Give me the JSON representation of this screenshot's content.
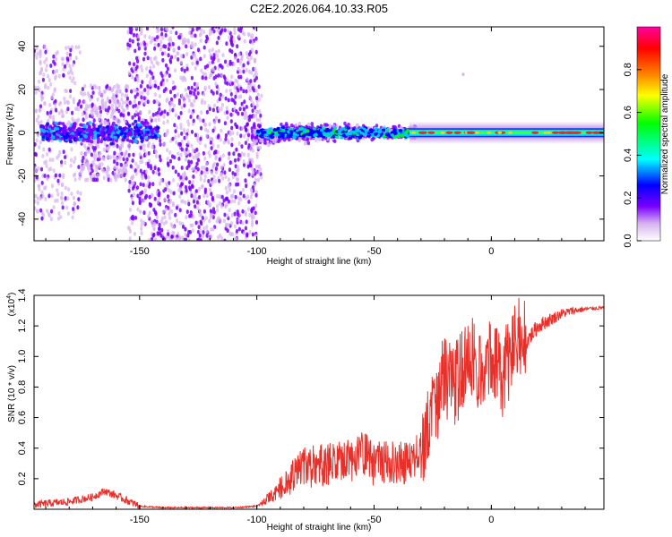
{
  "title": "C2E2.2026.064.10.33.R05",
  "chart_data": [
    {
      "type": "heatmap",
      "xlabel": "Height of straight line (km)",
      "ylabel": "Frequency (Hz)",
      "xlim": [
        -195,
        48
      ],
      "ylim": [
        -50,
        49
      ],
      "xticks": [
        -150,
        -100,
        -50,
        0
      ],
      "xtick_labels": [
        "-150",
        "-100",
        "-50",
        "0"
      ],
      "yticks": [
        -40,
        -20,
        0,
        20,
        40
      ],
      "ytick_labels": [
        "-40",
        "-20",
        "0",
        "20",
        "40"
      ],
      "colorbar": {
        "label": "Normalized spectral amplitude",
        "range": [
          0,
          1
        ],
        "ticks": [
          0.0,
          0.2,
          0.4,
          0.6,
          0.8
        ],
        "tick_labels": [
          "0.0",
          "0.2",
          "0.4",
          "0.6",
          "0.8"
        ],
        "colormap": [
          "#ffffff",
          "#d7b4f0",
          "#7a00ff",
          "#0000ff",
          "#00ffff",
          "#00ff00",
          "#ffff00",
          "#ff8000",
          "#ff0000",
          "#ff00a0"
        ]
      },
      "features": {
        "central_band_frequency_hz": 0,
        "wide_scatter_region_km": [
          -155,
          -100
        ],
        "narrow_strong_line_from_km": -35,
        "stray_point": {
          "x": -12,
          "y": 27
        }
      }
    },
    {
      "type": "line",
      "xlabel": "Height of straight line (km)",
      "ylabel": "SNR (10 * v/v)",
      "scale_label": "(x10",
      "scale_exponent": "4",
      "scale_suffix": ")",
      "xlim": [
        -195,
        48
      ],
      "ylim": [
        0,
        1.4
      ],
      "xticks": [
        -150,
        -100,
        -50,
        0
      ],
      "xtick_labels": [
        "-150",
        "-100",
        "-50",
        "0"
      ],
      "yticks": [
        0.2,
        0.4,
        0.6,
        0.8,
        1.0,
        1.2,
        1.4
      ],
      "ytick_labels": [
        "0.2",
        "0.4",
        "0.6",
        "0.8",
        "1.0",
        "1.2",
        "1.4"
      ],
      "series": [
        {
          "name": "SNR",
          "color": "#e8302a",
          "x": [
            -195,
            -180,
            -170,
            -165,
            -160,
            -150,
            -140,
            -120,
            -110,
            -100,
            -95,
            -90,
            -85,
            -80,
            -70,
            -60,
            -55,
            -50,
            -45,
            -40,
            -35,
            -30,
            -25,
            -20,
            -15,
            -10,
            -5,
            0,
            5,
            10,
            15,
            20,
            25,
            30,
            35,
            40,
            48
          ],
          "values": [
            0.03,
            0.05,
            0.08,
            0.12,
            0.09,
            0.02,
            0.01,
            0.01,
            0.01,
            0.02,
            0.06,
            0.12,
            0.18,
            0.24,
            0.26,
            0.28,
            0.35,
            0.25,
            0.28,
            0.26,
            0.28,
            0.35,
            0.55,
            0.8,
            0.75,
            0.95,
            0.85,
            0.95,
            0.8,
            1.05,
            1.1,
            1.2,
            1.24,
            1.28,
            1.3,
            1.31,
            1.32
          ]
        }
      ]
    }
  ]
}
